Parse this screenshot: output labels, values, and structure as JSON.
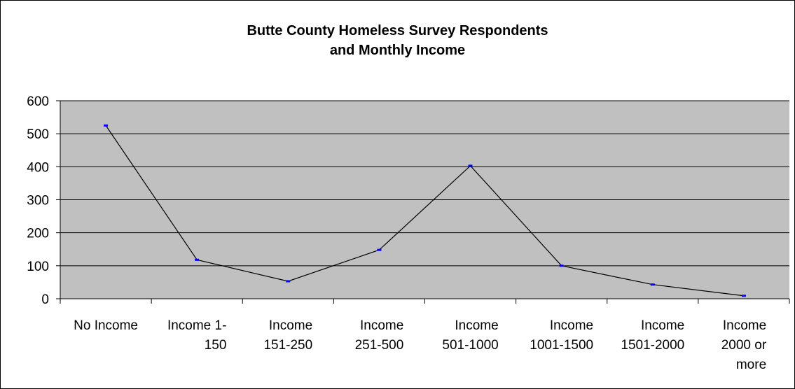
{
  "chart_data": {
    "type": "line",
    "title": [
      "Butte County Homeless Survey Respondents",
      "and Monthly Income"
    ],
    "categories": [
      [
        "No Income"
      ],
      [
        "Income 1-",
        "150"
      ],
      [
        "Income",
        "151-250"
      ],
      [
        "Income",
        "251-500"
      ],
      [
        "Income",
        "501-1000"
      ],
      [
        "Income",
        "1001-1500"
      ],
      [
        "Income",
        "1501-2000"
      ],
      [
        "Income",
        "2000 or",
        "more"
      ]
    ],
    "values": [
      525,
      118,
      53,
      148,
      403,
      100,
      43,
      9
    ],
    "ylim": [
      0,
      600
    ],
    "yticks": [
      0,
      100,
      200,
      300,
      400,
      500,
      600
    ],
    "grid": true,
    "legend": "none",
    "colors": {
      "plot_background": "#c0c0c0",
      "line": "#000000",
      "marker": "#0000ff",
      "gridline": "#000000"
    }
  }
}
